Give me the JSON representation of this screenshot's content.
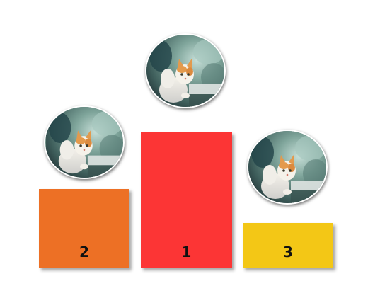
{
  "podiums": {
    "first": {
      "label": "1",
      "color": "#fc3535"
    },
    "second": {
      "label": "2",
      "color": "#ed7025"
    },
    "third": {
      "label": "3",
      "color": "#f3c716"
    }
  },
  "avatars": {
    "image": "cat-photo"
  }
}
